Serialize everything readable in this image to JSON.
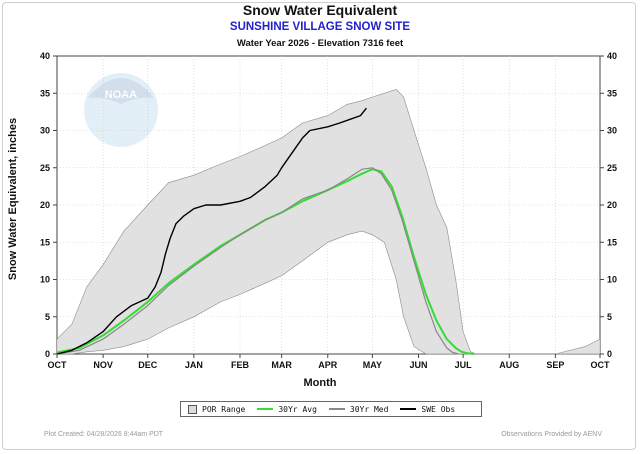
{
  "title": "Snow Water Equivalent",
  "subtitle": "SUNSHINE VILLAGE SNOW SITE",
  "subtitle2": "Water Year 2026 -  Elevation 7316 feet",
  "watermark": "NOAA",
  "footer_left": "Plot Created:  04/28/2026  8:44am PDT",
  "footer_right": "Observations Provided by AENV",
  "legend": {
    "por": "POR Range",
    "avg": "30Yr Avg",
    "med": "30Yr Med",
    "obs": "SWE Obs"
  },
  "colors": {
    "por_fill": "#dcdcdc",
    "por_edge": "#8c8c8c",
    "avg": "#33dd33",
    "med": "#888888",
    "obs": "#000000",
    "subtitle": "#2222cc"
  },
  "chart_data": {
    "type": "line",
    "title": "Snow Water Equivalent",
    "xlabel": "Month",
    "ylabel": "Snow Water Equivalent, inches",
    "xlim": [
      0,
      365
    ],
    "ylim": [
      0,
      40
    ],
    "yticks": [
      0,
      5,
      10,
      15,
      20,
      25,
      30,
      35,
      40
    ],
    "xticks": [
      {
        "x": 0,
        "label": "OCT"
      },
      {
        "x": 31,
        "label": "NOV"
      },
      {
        "x": 61,
        "label": "DEC"
      },
      {
        "x": 92,
        "label": "JAN"
      },
      {
        "x": 123,
        "label": "FEB"
      },
      {
        "x": 151,
        "label": "MAR"
      },
      {
        "x": 182,
        "label": "APR"
      },
      {
        "x": 212,
        "label": "MAY"
      },
      {
        "x": 243,
        "label": "JUN"
      },
      {
        "x": 273,
        "label": "JUL"
      },
      {
        "x": 304,
        "label": "AUG"
      },
      {
        "x": 335,
        "label": "SEP"
      },
      {
        "x": 365,
        "label": "OCT"
      }
    ],
    "grid": true,
    "legend_position": "bottom",
    "por_range": {
      "x": [
        0,
        10,
        20,
        31,
        45,
        61,
        75,
        92,
        110,
        123,
        140,
        151,
        165,
        182,
        195,
        205,
        212,
        220,
        228,
        233,
        240,
        248,
        255,
        262,
        268,
        273,
        278,
        282,
        290,
        304,
        335,
        355,
        365
      ],
      "upper": [
        2,
        4,
        9,
        12,
        16.5,
        20,
        23,
        24,
        25.5,
        26.5,
        28,
        29,
        31,
        32,
        33.5,
        34,
        34.5,
        35,
        35.5,
        34.5,
        30,
        25,
        20,
        17,
        10,
        3,
        0.3,
        0,
        0,
        0,
        0,
        1,
        2
      ],
      "lower": [
        0,
        0,
        0.3,
        0.5,
        1,
        2,
        3.5,
        5,
        7,
        8,
        9.5,
        10.5,
        12.5,
        15,
        16,
        16.5,
        16,
        15,
        10,
        5,
        1,
        0,
        0,
        0,
        0,
        0,
        0,
        0,
        0,
        0,
        0,
        0,
        0
      ]
    },
    "series": [
      {
        "name": "30Yr Avg",
        "x": [
          0,
          15,
          31,
          45,
          61,
          75,
          92,
          110,
          123,
          140,
          151,
          165,
          182,
          195,
          205,
          212,
          218,
          225,
          232,
          240,
          248,
          255,
          262,
          268,
          272,
          276,
          280
        ],
        "values": [
          0.2,
          0.8,
          2.5,
          4.5,
          7,
          9.5,
          12,
          14.5,
          16,
          18,
          19,
          20.5,
          22,
          23.2,
          24.2,
          24.8,
          24.5,
          22.5,
          18.5,
          13,
          8,
          4.5,
          2,
          0.8,
          0.3,
          0.1,
          0
        ]
      },
      {
        "name": "30Yr Med",
        "x": [
          0,
          15,
          31,
          45,
          61,
          75,
          92,
          110,
          123,
          140,
          151,
          165,
          182,
          195,
          205,
          212,
          218,
          225,
          232,
          240,
          248,
          255,
          262,
          266,
          270
        ],
        "values": [
          0,
          0.5,
          2,
          4,
          6.5,
          9.2,
          11.8,
          14.3,
          16,
          18,
          19,
          20.8,
          22,
          23.5,
          24.8,
          25,
          24.2,
          22,
          18,
          12.5,
          7,
          3,
          0.8,
          0.2,
          0
        ]
      },
      {
        "name": "SWE Obs",
        "x": [
          0,
          10,
          20,
          31,
          40,
          50,
          61,
          66,
          70,
          73,
          76,
          80,
          85,
          92,
          100,
          110,
          123,
          130,
          140,
          148,
          151,
          158,
          165,
          170,
          182,
          190,
          197,
          204,
          208
        ],
        "values": [
          0,
          0.5,
          1.5,
          3,
          5,
          6.5,
          7.5,
          9,
          11,
          13.5,
          15.5,
          17.5,
          18.5,
          19.5,
          20,
          20,
          20.5,
          21,
          22.5,
          24,
          25,
          27,
          29,
          30,
          30.5,
          31,
          31.5,
          32,
          33
        ]
      }
    ]
  }
}
